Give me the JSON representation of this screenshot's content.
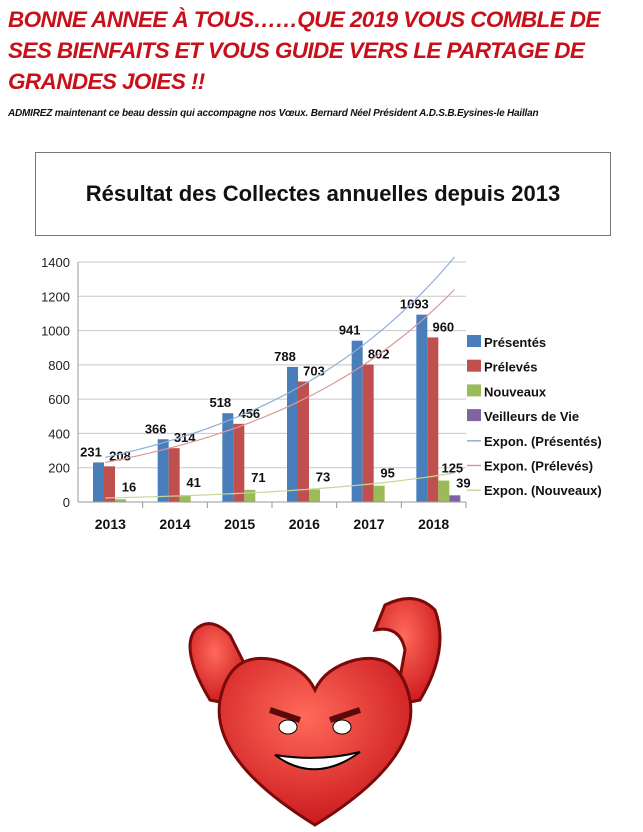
{
  "headline": "BONNE ANNEE À TOUS……QUE 2019 VOUS COMBLE DE SES BIENFAITS ET VOUS GUIDE VERS LE PARTAGE DE GRANDES JOIES !!",
  "subtitle": "ADMIREZ maintenant ce beau dessin qui accompagne nos Vœux. Bernard Néel Président A.D.S.B.Eysines-le Haillan",
  "chart_data": {
    "type": "bar",
    "title": "Résultat des Collectes annuelles depuis 2013",
    "categories": [
      "2013",
      "2014",
      "2015",
      "2016",
      "2017",
      "2018"
    ],
    "ylim": [
      0,
      1400
    ],
    "yticks": [
      0,
      200,
      400,
      600,
      800,
      1000,
      1200,
      1400
    ],
    "grid": true,
    "legend_position": "right",
    "series": [
      {
        "name": "Présentés",
        "color": "#4a7ebb",
        "values": [
          231,
          366,
          518,
          788,
          941,
          1093
        ]
      },
      {
        "name": "Prélevés",
        "color": "#c0504d",
        "values": [
          208,
          314,
          456,
          703,
          802,
          960
        ]
      },
      {
        "name": "Nouveaux",
        "color": "#9bbb59",
        "values": [
          16,
          41,
          71,
          73,
          95,
          125
        ]
      },
      {
        "name": "Veilleurs de Vie",
        "color": "#8064a2",
        "values": [
          null,
          null,
          null,
          null,
          null,
          39
        ]
      }
    ],
    "trendlines": [
      {
        "name": "Expon. (Présentés)",
        "color": "#8fb0d8",
        "of": "Présentés"
      },
      {
        "name": "Expon. (Prélevés)",
        "color": "#d89a98",
        "of": "Prélevés"
      },
      {
        "name": "Expon. (Nouveaux)",
        "color": "#c4d89a",
        "of": "Nouveaux"
      }
    ]
  }
}
